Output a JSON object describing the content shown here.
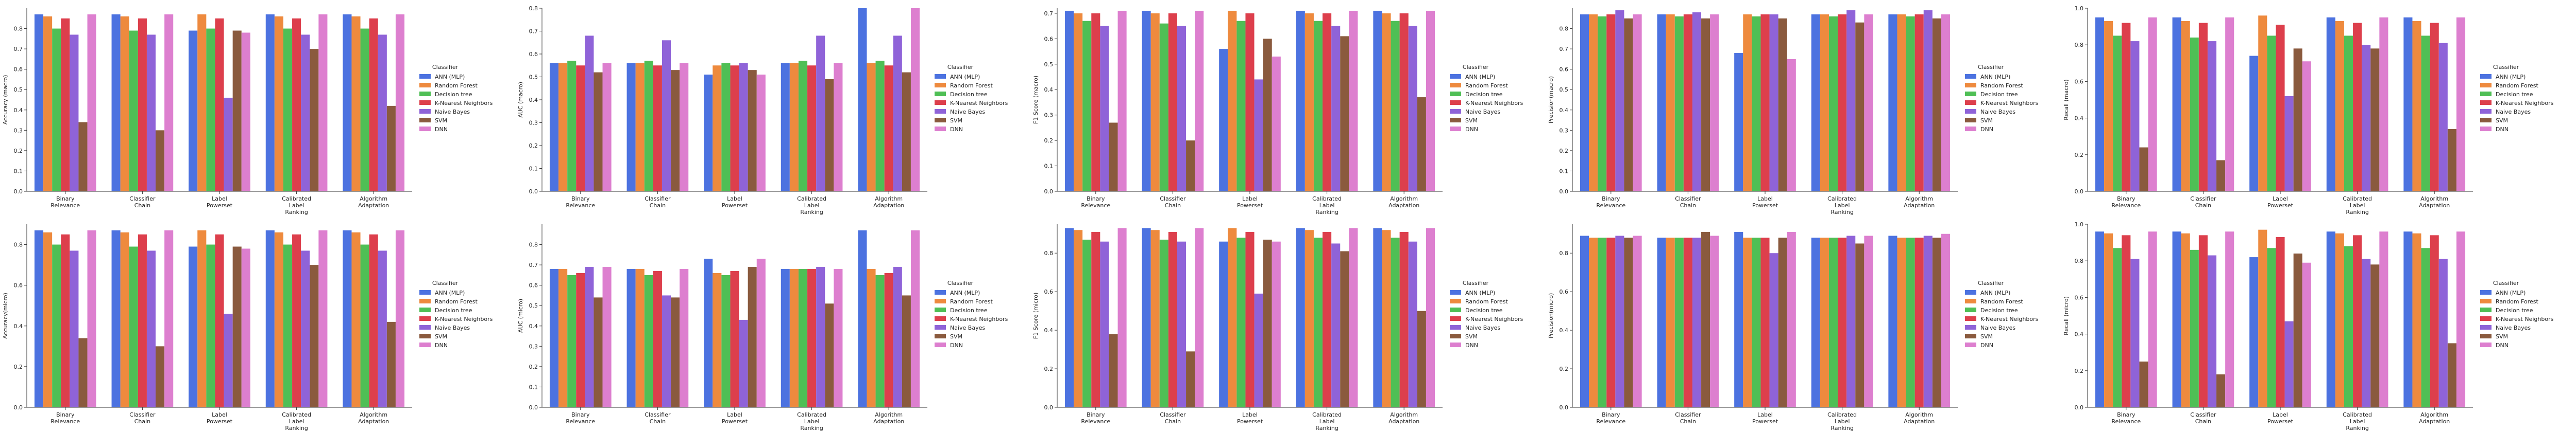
{
  "colors": [
    "#4c72e0",
    "#ee8a3e",
    "#4fbf55",
    "#dd3f4c",
    "#8f63d8",
    "#8a5a3e",
    "#dd7fcf"
  ],
  "chart_data": [
    {
      "type": "bar",
      "ylabel": "Accuracy (macro)",
      "ylim": [
        0,
        0.9
      ],
      "yticks": [
        "0.0",
        "0.1",
        "0.2",
        "0.3",
        "0.4",
        "0.5",
        "0.6",
        "0.7",
        "0.8"
      ],
      "ytick_values": [
        0,
        0.1,
        0.2,
        0.3,
        0.4,
        0.5,
        0.6,
        0.7,
        0.8
      ],
      "categories": [
        "Binary\nRelevance",
        "Classifier\nChain",
        "Label\nPowerset",
        "Calibrated\nLabel\nRanking",
        "Algorithm\nAdaptation"
      ],
      "legend_title": "Classifier",
      "series": [
        {
          "name": "ANN (MLP)",
          "values": [
            0.87,
            0.87,
            0.79,
            0.87,
            0.87
          ]
        },
        {
          "name": "Random Forest",
          "values": [
            0.86,
            0.86,
            0.87,
            0.86,
            0.86
          ]
        },
        {
          "name": "Decision tree",
          "values": [
            0.8,
            0.79,
            0.8,
            0.8,
            0.8
          ]
        },
        {
          "name": "K-Nearest Neighbors",
          "values": [
            0.85,
            0.85,
            0.85,
            0.85,
            0.85
          ]
        },
        {
          "name": "Naive Bayes",
          "values": [
            0.77,
            0.77,
            0.46,
            0.77,
            0.77
          ]
        },
        {
          "name": "SVM",
          "values": [
            0.34,
            0.3,
            0.79,
            0.7,
            0.42
          ]
        },
        {
          "name": "DNN",
          "values": [
            0.87,
            0.87,
            0.78,
            0.87,
            0.87
          ]
        }
      ]
    },
    {
      "type": "bar",
      "ylabel": "AUC (macro)",
      "ylim": [
        0,
        0.8
      ],
      "yticks": [
        "0.0",
        "0.1",
        "0.2",
        "0.3",
        "0.4",
        "0.5",
        "0.6",
        "0.7",
        "0.8"
      ],
      "ytick_values": [
        0,
        0.1,
        0.2,
        0.3,
        0.4,
        0.5,
        0.6,
        0.7,
        0.8
      ],
      "categories": [
        "Binary\nRelevance",
        "Classifier\nChain",
        "Label\nPowerset",
        "Calibrated\nLabel\nRanking",
        "Algorithm\nAdaptation"
      ],
      "legend_title": "Classifier",
      "series": [
        {
          "name": "ANN (MLP)",
          "values": [
            0.56,
            0.56,
            0.51,
            0.56,
            0.8
          ]
        },
        {
          "name": "Random Forest",
          "values": [
            0.56,
            0.56,
            0.55,
            0.56,
            0.56
          ]
        },
        {
          "name": "Decision tree",
          "values": [
            0.57,
            0.57,
            0.56,
            0.57,
            0.57
          ]
        },
        {
          "name": "K-Nearest Neighbors",
          "values": [
            0.55,
            0.55,
            0.55,
            0.55,
            0.55
          ]
        },
        {
          "name": "Naive Bayes",
          "values": [
            0.68,
            0.66,
            0.56,
            0.68,
            0.68
          ]
        },
        {
          "name": "SVM",
          "values": [
            0.52,
            0.53,
            0.53,
            0.49,
            0.52
          ]
        },
        {
          "name": "DNN",
          "values": [
            0.56,
            0.56,
            0.51,
            0.56,
            0.8
          ]
        }
      ]
    },
    {
      "type": "bar",
      "ylabel": "F1 Score (macro)",
      "ylim": [
        0,
        0.72
      ],
      "yticks": [
        "0.0",
        "0.1",
        "0.2",
        "0.3",
        "0.4",
        "0.5",
        "0.6",
        "0.7"
      ],
      "ytick_values": [
        0,
        0.1,
        0.2,
        0.3,
        0.4,
        0.5,
        0.6,
        0.7
      ],
      "categories": [
        "Binary\nRelevance",
        "Classifier\nChain",
        "Label\nPowerset",
        "Calibrated\nLabel\nRanking",
        "Algorithm\nAdaptation"
      ],
      "legend_title": "Classifier",
      "series": [
        {
          "name": "ANN (MLP)",
          "values": [
            0.71,
            0.71,
            0.56,
            0.71,
            0.71
          ]
        },
        {
          "name": "Random Forest",
          "values": [
            0.7,
            0.7,
            0.71,
            0.7,
            0.7
          ]
        },
        {
          "name": "Decision tree",
          "values": [
            0.67,
            0.66,
            0.67,
            0.67,
            0.67
          ]
        },
        {
          "name": "K-Nearest Neighbors",
          "values": [
            0.7,
            0.7,
            0.7,
            0.7,
            0.7
          ]
        },
        {
          "name": "Naive Bayes",
          "values": [
            0.65,
            0.65,
            0.44,
            0.65,
            0.65
          ]
        },
        {
          "name": "SVM",
          "values": [
            0.27,
            0.2,
            0.6,
            0.61,
            0.37
          ]
        },
        {
          "name": "DNN",
          "values": [
            0.71,
            0.71,
            0.53,
            0.71,
            0.71
          ]
        }
      ]
    },
    {
      "type": "bar",
      "ylabel": "Precision(macro)",
      "ylim": [
        0,
        0.9
      ],
      "yticks": [
        "0.0",
        "0.1",
        "0.2",
        "0.3",
        "0.4",
        "0.5",
        "0.6",
        "0.7",
        "0.8"
      ],
      "ytick_values": [
        0,
        0.1,
        0.2,
        0.3,
        0.4,
        0.5,
        0.6,
        0.7,
        0.8
      ],
      "categories": [
        "Binary\nRelevance",
        "Classifier\nChain",
        "Label\nPowerset",
        "Calibrated\nLabel\nRanking",
        "Algorithm\nAdaptation"
      ],
      "legend_title": "Classifier",
      "series": [
        {
          "name": "ANN (MLP)",
          "values": [
            0.87,
            0.87,
            0.68,
            0.87,
            0.87
          ]
        },
        {
          "name": "Random Forest",
          "values": [
            0.87,
            0.87,
            0.87,
            0.87,
            0.87
          ]
        },
        {
          "name": "Decision tree",
          "values": [
            0.86,
            0.86,
            0.86,
            0.86,
            0.86
          ]
        },
        {
          "name": "K-Nearest Neighbors",
          "values": [
            0.87,
            0.87,
            0.87,
            0.87,
            0.87
          ]
        },
        {
          "name": "Naive Bayes",
          "values": [
            0.89,
            0.88,
            0.87,
            0.89,
            0.89
          ]
        },
        {
          "name": "SVM",
          "values": [
            0.85,
            0.85,
            0.85,
            0.83,
            0.85
          ]
        },
        {
          "name": "DNN",
          "values": [
            0.87,
            0.87,
            0.65,
            0.87,
            0.87
          ]
        }
      ]
    },
    {
      "type": "bar",
      "ylabel": "Recall (macro)",
      "ylim": [
        0,
        1.0
      ],
      "yticks": [
        "0.0",
        "0.2",
        "0.4",
        "0.6",
        "0.8",
        "1.0"
      ],
      "ytick_values": [
        0,
        0.2,
        0.4,
        0.6,
        0.8,
        1.0
      ],
      "categories": [
        "Binary\nRelevance",
        "Classifier\nChain",
        "Label\nPowerset",
        "Calibrated\nLabel\nRanking",
        "Algorithm\nAdaptation"
      ],
      "legend_title": "Classifier",
      "series": [
        {
          "name": "ANN (MLP)",
          "values": [
            0.95,
            0.95,
            0.74,
            0.95,
            0.95
          ]
        },
        {
          "name": "Random Forest",
          "values": [
            0.93,
            0.93,
            0.96,
            0.93,
            0.93
          ]
        },
        {
          "name": "Decision tree",
          "values": [
            0.85,
            0.84,
            0.85,
            0.85,
            0.85
          ]
        },
        {
          "name": "K-Nearest Neighbors",
          "values": [
            0.92,
            0.92,
            0.91,
            0.92,
            0.92
          ]
        },
        {
          "name": "Naive Bayes",
          "values": [
            0.82,
            0.82,
            0.52,
            0.8,
            0.81
          ]
        },
        {
          "name": "SVM",
          "values": [
            0.24,
            0.17,
            0.78,
            0.78,
            0.34
          ]
        },
        {
          "name": "DNN",
          "values": [
            0.95,
            0.95,
            0.71,
            0.95,
            0.95
          ]
        }
      ]
    },
    {
      "type": "bar",
      "ylabel": "Accuracy(micro)",
      "ylim": [
        0,
        0.9
      ],
      "yticks": [
        "0.0",
        "0.2",
        "0.4",
        "0.6",
        "0.8"
      ],
      "ytick_values": [
        0,
        0.2,
        0.4,
        0.6,
        0.8
      ],
      "categories": [
        "Binary\nRelevance",
        "Classifier\nChain",
        "Label\nPowerset",
        "Calibrated\nLabel\nRanking",
        "Algorithm\nAdaptation"
      ],
      "legend_title": "Classifier",
      "series": [
        {
          "name": "ANN (MLP)",
          "values": [
            0.87,
            0.87,
            0.79,
            0.87,
            0.87
          ]
        },
        {
          "name": "Random Forest",
          "values": [
            0.86,
            0.86,
            0.87,
            0.86,
            0.86
          ]
        },
        {
          "name": "Decision tree",
          "values": [
            0.8,
            0.79,
            0.8,
            0.8,
            0.8
          ]
        },
        {
          "name": "K-Nearest Neighbors",
          "values": [
            0.85,
            0.85,
            0.85,
            0.85,
            0.85
          ]
        },
        {
          "name": "Naive Bayes",
          "values": [
            0.77,
            0.77,
            0.46,
            0.77,
            0.77
          ]
        },
        {
          "name": "SVM",
          "values": [
            0.34,
            0.3,
            0.79,
            0.7,
            0.42
          ]
        },
        {
          "name": "DNN",
          "values": [
            0.87,
            0.87,
            0.78,
            0.87,
            0.87
          ]
        }
      ]
    },
    {
      "type": "bar",
      "ylabel": "AUC (micro)",
      "ylim": [
        0,
        0.9
      ],
      "yticks": [
        "0.0",
        "0.1",
        "0.2",
        "0.3",
        "0.4",
        "0.5",
        "0.6",
        "0.7",
        "0.8"
      ],
      "ytick_values": [
        0,
        0.1,
        0.2,
        0.3,
        0.4,
        0.5,
        0.6,
        0.7,
        0.8
      ],
      "categories": [
        "Binary\nRelevance",
        "Classifier\nChain",
        "Label\nPowerset",
        "Calibrated\nLabel\nRanking",
        "Algorithm\nAdaptation"
      ],
      "legend_title": "Classifier",
      "series": [
        {
          "name": "ANN (MLP)",
          "values": [
            0.68,
            0.68,
            0.73,
            0.68,
            0.87
          ]
        },
        {
          "name": "Random Forest",
          "values": [
            0.68,
            0.68,
            0.66,
            0.68,
            0.68
          ]
        },
        {
          "name": "Decision tree",
          "values": [
            0.65,
            0.65,
            0.65,
            0.68,
            0.65
          ]
        },
        {
          "name": "K-Nearest Neighbors",
          "values": [
            0.66,
            0.67,
            0.67,
            0.68,
            0.66
          ]
        },
        {
          "name": "Naive Bayes",
          "values": [
            0.69,
            0.55,
            0.43,
            0.69,
            0.69
          ]
        },
        {
          "name": "SVM",
          "values": [
            0.54,
            0.54,
            0.69,
            0.51,
            0.55
          ]
        },
        {
          "name": "DNN",
          "values": [
            0.69,
            0.68,
            0.73,
            0.68,
            0.87
          ]
        }
      ]
    },
    {
      "type": "bar",
      "ylabel": "F1 Score (micro)",
      "ylim": [
        0,
        0.95
      ],
      "yticks": [
        "0.0",
        "0.2",
        "0.4",
        "0.6",
        "0.8"
      ],
      "ytick_values": [
        0,
        0.2,
        0.4,
        0.6,
        0.8
      ],
      "categories": [
        "Binary\nRelevance",
        "Classifier\nChain",
        "Label\nPowerset",
        "Calibrated\nLabel\nRanking",
        "Algorithm\nAdaptation"
      ],
      "legend_title": "Classifier",
      "series": [
        {
          "name": "ANN (MLP)",
          "values": [
            0.93,
            0.93,
            0.86,
            0.93,
            0.93
          ]
        },
        {
          "name": "Random Forest",
          "values": [
            0.92,
            0.92,
            0.93,
            0.92,
            0.92
          ]
        },
        {
          "name": "Decision tree",
          "values": [
            0.87,
            0.87,
            0.88,
            0.88,
            0.88
          ]
        },
        {
          "name": "K-Nearest Neighbors",
          "values": [
            0.91,
            0.91,
            0.91,
            0.91,
            0.91
          ]
        },
        {
          "name": "Naive Bayes",
          "values": [
            0.86,
            0.86,
            0.59,
            0.85,
            0.86
          ]
        },
        {
          "name": "SVM",
          "values": [
            0.38,
            0.29,
            0.87,
            0.81,
            0.5
          ]
        },
        {
          "name": "DNN",
          "values": [
            0.93,
            0.93,
            0.86,
            0.93,
            0.93
          ]
        }
      ]
    },
    {
      "type": "bar",
      "ylabel": "Precision(micro)",
      "ylim": [
        0,
        0.95
      ],
      "yticks": [
        "0.0",
        "0.2",
        "0.4",
        "0.6",
        "0.8"
      ],
      "ytick_values": [
        0,
        0.2,
        0.4,
        0.6,
        0.8
      ],
      "categories": [
        "Binary\nRelevance",
        "Classifier\nChain",
        "Label\nPowerset",
        "Calibrated\nLabel\nRanking",
        "Algorithm\nAdaptation"
      ],
      "legend_title": "Classifier",
      "series": [
        {
          "name": "ANN (MLP)",
          "values": [
            0.89,
            0.88,
            0.91,
            0.88,
            0.89
          ]
        },
        {
          "name": "Random Forest",
          "values": [
            0.88,
            0.88,
            0.88,
            0.88,
            0.88
          ]
        },
        {
          "name": "Decision tree",
          "values": [
            0.88,
            0.88,
            0.88,
            0.88,
            0.88
          ]
        },
        {
          "name": "K-Nearest Neighbors",
          "values": [
            0.88,
            0.88,
            0.88,
            0.88,
            0.88
          ]
        },
        {
          "name": "Naive Bayes",
          "values": [
            0.89,
            0.88,
            0.8,
            0.89,
            0.89
          ]
        },
        {
          "name": "SVM",
          "values": [
            0.88,
            0.91,
            0.88,
            0.85,
            0.88
          ]
        },
        {
          "name": "DNN",
          "values": [
            0.89,
            0.89,
            0.91,
            0.89,
            0.9
          ]
        }
      ]
    },
    {
      "type": "bar",
      "ylabel": "Recall (micro)",
      "ylim": [
        0,
        1.0
      ],
      "yticks": [
        "0.0",
        "0.2",
        "0.4",
        "0.6",
        "0.8",
        "1.0"
      ],
      "ytick_values": [
        0,
        0.2,
        0.4,
        0.6,
        0.8,
        1.0
      ],
      "categories": [
        "Binary\nRelevance",
        "Classifier\nChain",
        "Label\nPowerset",
        "Calibrated\nLabel\nRanking",
        "Algorithm\nAdaptation"
      ],
      "legend_title": "Classifier",
      "series": [
        {
          "name": "ANN (MLP)",
          "values": [
            0.96,
            0.96,
            0.82,
            0.96,
            0.96
          ]
        },
        {
          "name": "Random Forest",
          "values": [
            0.95,
            0.95,
            0.97,
            0.95,
            0.95
          ]
        },
        {
          "name": "Decision tree",
          "values": [
            0.87,
            0.86,
            0.87,
            0.88,
            0.87
          ]
        },
        {
          "name": "K-Nearest Neighbors",
          "values": [
            0.94,
            0.94,
            0.93,
            0.94,
            0.94
          ]
        },
        {
          "name": "Naive Bayes",
          "values": [
            0.81,
            0.83,
            0.47,
            0.81,
            0.81
          ]
        },
        {
          "name": "SVM",
          "values": [
            0.25,
            0.18,
            0.84,
            0.78,
            0.35
          ]
        },
        {
          "name": "DNN",
          "values": [
            0.96,
            0.96,
            0.79,
            0.96,
            0.96
          ]
        }
      ]
    }
  ]
}
